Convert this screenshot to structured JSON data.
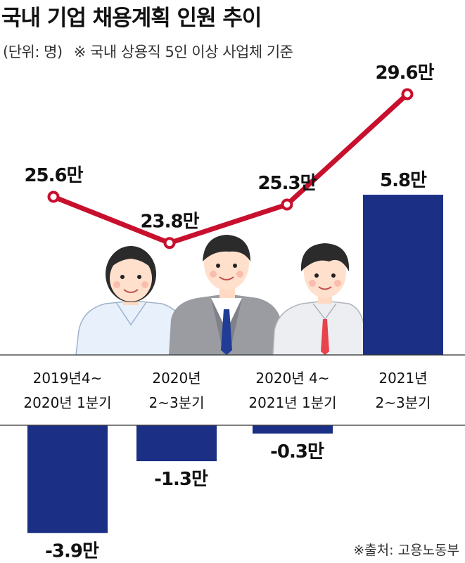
{
  "header": {
    "title": "국내 기업 채용계획 인원 추이",
    "unit_note": "(단위: 명)",
    "scope_note": "※ 국내 상용직 5인 이상 사업체 기준"
  },
  "source": "※출처: 고용노동부",
  "colors": {
    "bar": "#1b2f85",
    "line": "#c8102e",
    "point_fill": "#ffffff"
  },
  "illustration": [
    "woman-figure",
    "man-in-suit-figure",
    "man-in-shirt-figure"
  ],
  "chart_data": {
    "type": "bar+line",
    "categories": [
      [
        "2019년4~",
        "2020년 1분기"
      ],
      [
        "2020년",
        "2~3분기"
      ],
      [
        "2020년 4~",
        "2021년 1분기"
      ],
      [
        "2021년",
        "2~3분기"
      ]
    ],
    "bars": {
      "values": [
        -3.9,
        -1.3,
        -0.3,
        5.8
      ],
      "labels": [
        "-3.9만",
        "-1.3만",
        "-0.3만",
        "5.8만"
      ]
    },
    "line": {
      "values": [
        25.6,
        23.8,
        25.3,
        29.6
      ],
      "labels": [
        "25.6만",
        "23.8만",
        "25.3만",
        "29.6만"
      ]
    }
  }
}
